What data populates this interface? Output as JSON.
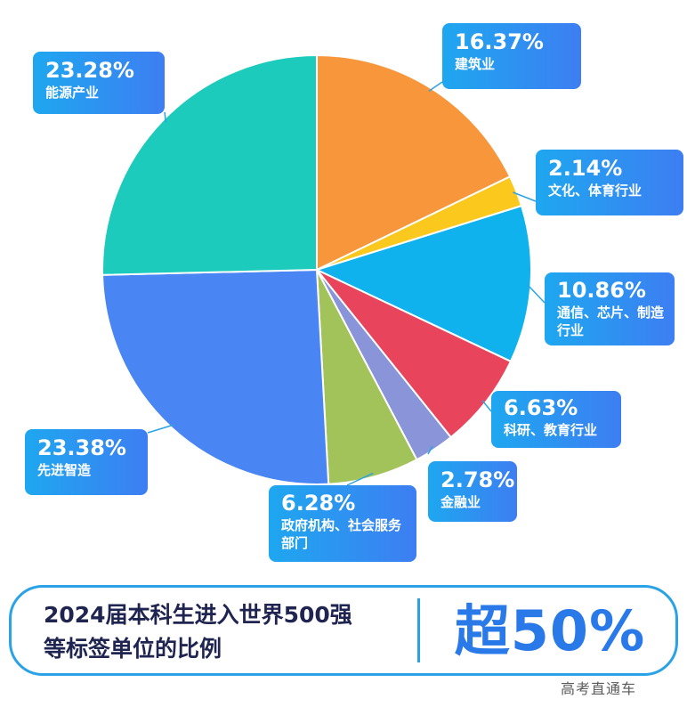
{
  "chart_data": {
    "type": "pie",
    "start_angle_deg": 0,
    "direction": "clockwise",
    "slices": [
      {
        "label": "建筑业",
        "value": 16.37,
        "display": "16.37%",
        "color": "#f7963b"
      },
      {
        "label": "文化、体育行业",
        "value": 2.14,
        "display": "2.14%",
        "color": "#fbc81e"
      },
      {
        "label": "通信、芯片、制造行业",
        "value": 10.86,
        "display": "10.86%",
        "color": "#10b2ee"
      },
      {
        "label": "科研、教育行业",
        "value": 6.63,
        "display": "6.63%",
        "color": "#e8455d"
      },
      {
        "label": "金融业",
        "value": 2.78,
        "display": "2.78%",
        "color": "#8995d8"
      },
      {
        "label": "政府机构、社会服务部门",
        "value": 6.28,
        "display": "6.28%",
        "color": "#a2c35a"
      },
      {
        "label": "先进智造",
        "value": 23.38,
        "display": "23.38%",
        "color": "#4a85f4"
      },
      {
        "label": "能源产业",
        "value": 23.28,
        "display": "23.28%",
        "color": "#1ccbbb"
      }
    ]
  },
  "footer": {
    "caption_line1": "2024届本科生进入世界500强",
    "caption_line2": "等标签单位的比例",
    "highlight": "超50%"
  },
  "watermark": "高考直通车"
}
